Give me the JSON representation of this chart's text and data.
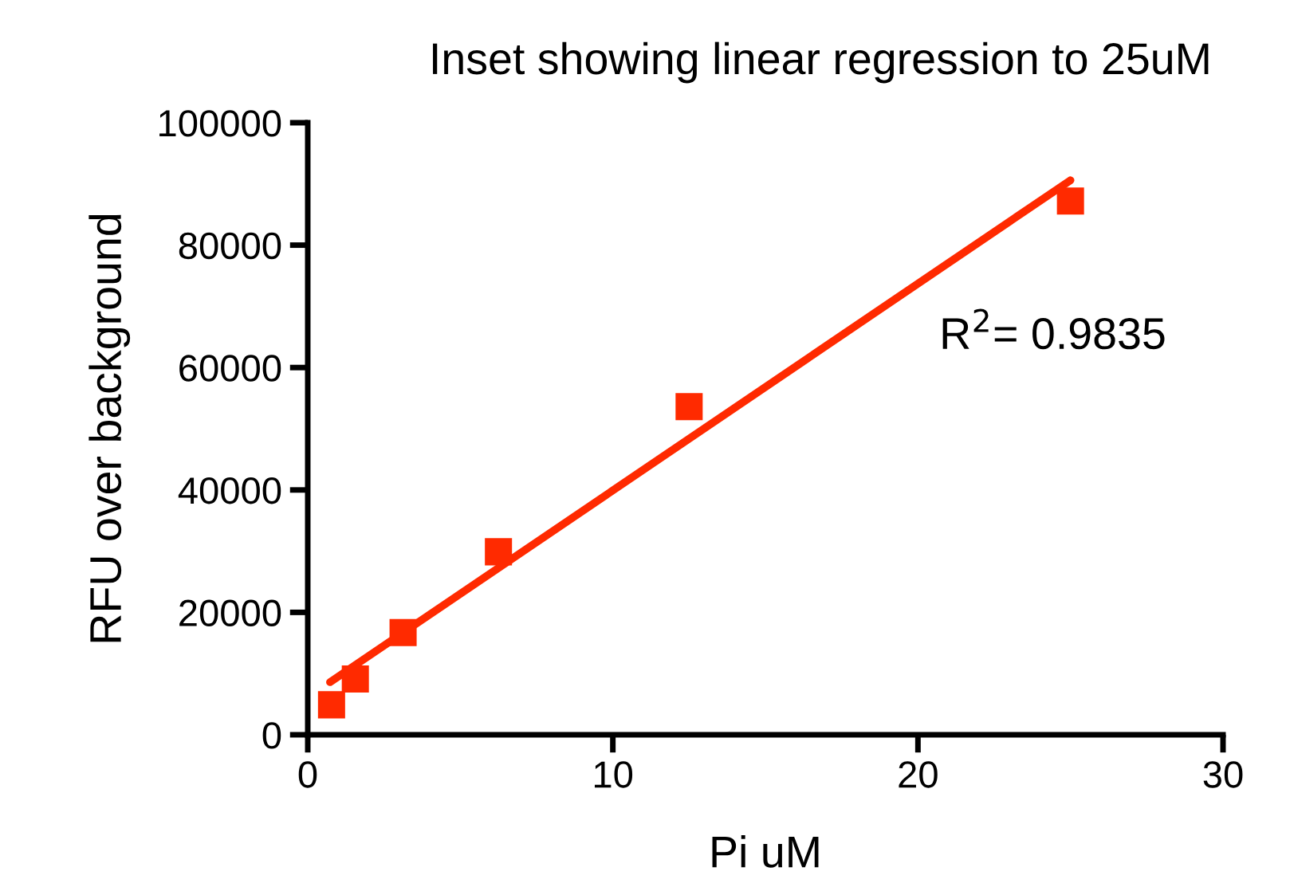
{
  "chart_data": {
    "type": "scatter",
    "title": "Inset showing linear regression to 25uM",
    "xlabel": "Pi uM",
    "ylabel": "RFU over background",
    "x": [
      0.78,
      1.56,
      3.125,
      6.25,
      12.5,
      25
    ],
    "series": [
      {
        "color": "#ff2a00",
        "values": [
          4900,
          9100,
          16700,
          29900,
          53600,
          87200
        ],
        "marker": "square"
      },
      {
        "type": "line",
        "color": "#ff2a00",
        "x": [
          0.73,
          25
        ],
        "values": [
          8600,
          90600
        ],
        "line_style": "solid"
      }
    ],
    "xlim": [
      0,
      30
    ],
    "xticks": [
      0,
      10,
      20,
      30
    ],
    "ylim": [
      0,
      100000
    ],
    "yticks": [
      0,
      20000,
      40000,
      60000,
      80000,
      100000
    ],
    "annotations": [
      "R$^{2}$= 0.9835"
    ],
    "grid": false,
    "legend": false
  }
}
